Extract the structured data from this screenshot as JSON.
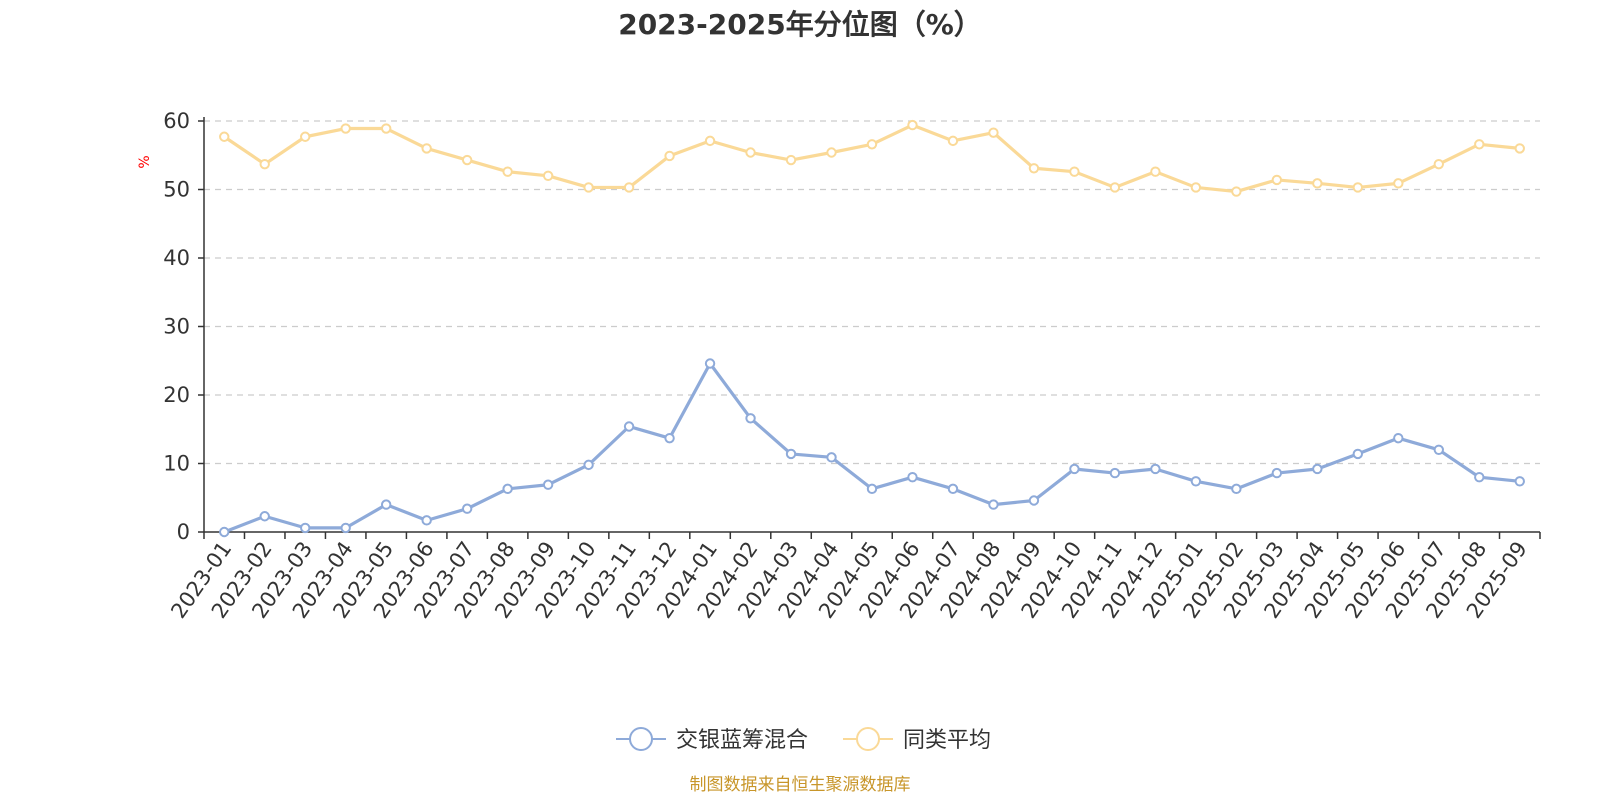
{
  "colors": {
    "series_1": "#8eaad9",
    "series_2": "#fad997",
    "axis": "#333333",
    "grid": "#cccccc",
    "ylabel": "#ff0000",
    "footer": "#c8962a"
  },
  "footer": {
    "source_text": "制图数据来自恒生聚源数据库"
  },
  "chart_data": {
    "type": "line",
    "title": "2023-2025年分位图（%）",
    "xlabel": "",
    "ylabel": "%",
    "ylim": [
      0,
      60
    ],
    "yticks": [
      0,
      10,
      20,
      30,
      40,
      50,
      60
    ],
    "grid": true,
    "legend_position": "bottom-center",
    "categories": [
      "2023-01",
      "2023-02",
      "2023-03",
      "2023-04",
      "2023-05",
      "2023-06",
      "2023-07",
      "2023-08",
      "2023-09",
      "2023-10",
      "2023-11",
      "2023-12",
      "2024-01",
      "2024-02",
      "2024-03",
      "2024-04",
      "2024-05",
      "2024-06",
      "2024-07",
      "2024-08",
      "2024-09",
      "2024-10",
      "2024-11",
      "2024-12",
      "2025-01",
      "2025-02",
      "2025-03",
      "2025-04",
      "2025-05",
      "2025-06",
      "2025-07",
      "2025-08",
      "2025-09"
    ],
    "series": [
      {
        "name": "交银蓝筹混合",
        "color_key": "series_1",
        "values": [
          0.0,
          2.3,
          0.6,
          0.6,
          4.0,
          1.7,
          3.4,
          6.3,
          6.9,
          9.8,
          15.4,
          13.7,
          24.6,
          16.6,
          11.4,
          10.9,
          6.3,
          8.0,
          6.3,
          4.0,
          4.6,
          9.2,
          8.6,
          9.2,
          7.4,
          6.3,
          8.6,
          9.2,
          11.4,
          13.7,
          12.0,
          8.0,
          7.4
        ]
      },
      {
        "name": "同类平均",
        "color_key": "series_2",
        "values": [
          57.7,
          53.7,
          57.7,
          58.9,
          58.9,
          56.0,
          54.3,
          52.6,
          52.0,
          50.3,
          50.3,
          54.9,
          57.1,
          55.4,
          54.3,
          55.4,
          56.6,
          59.4,
          57.1,
          58.3,
          53.1,
          52.6,
          50.3,
          52.6,
          50.3,
          49.7,
          51.4,
          50.9,
          50.3,
          50.9,
          53.7,
          56.6,
          56.0
        ]
      }
    ]
  }
}
